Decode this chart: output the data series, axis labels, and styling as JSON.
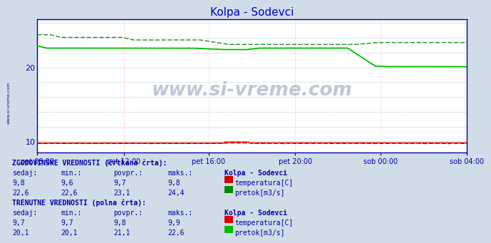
{
  "title": "Kolpa - Sodevci",
  "title_color": "#0000cc",
  "bg_color": "#d0dde8",
  "plot_bg_color": "#ffffff",
  "grid_color_v": "#ffaaaa",
  "grid_color_h": "#88bbbb",
  "y_ticks": [
    10,
    20
  ],
  "y_extra_h": [
    12,
    14,
    16,
    18,
    22,
    24,
    26
  ],
  "y_min": 8.5,
  "y_max": 26.5,
  "x_labels": [
    "pet 08:00",
    "pet 12:00",
    "pet 16:00",
    "pet 20:00",
    "sob 00:00",
    "sob 04:00"
  ],
  "n_points": 264,
  "temp_hist_color": "#cc0000",
  "temp_curr_color": "#dd0000",
  "flow_hist_color": "#008800",
  "flow_curr_color": "#00bb00",
  "watermark": "www.si-vreme.com",
  "watermark_color": "#1a3a6a",
  "left_label": "www.si-vreme.com",
  "text_color": "#0000aa",
  "border_color": "#0000aa",
  "hist_temp_sedaj": "9,8",
  "hist_temp_min": "9,6",
  "hist_temp_povpr": "9,7",
  "hist_temp_maks": "9,8",
  "hist_flow_sedaj": "22,6",
  "hist_flow_min": "22,6",
  "hist_flow_povpr": "23,1",
  "hist_flow_maks": "24,4",
  "curr_temp_sedaj": "9,7",
  "curr_temp_min": "9,7",
  "curr_temp_povpr": "9,8",
  "curr_temp_maks": "9,9",
  "curr_flow_sedaj": "20,1",
  "curr_flow_min": "20,1",
  "curr_flow_povpr": "21,1",
  "curr_flow_maks": "22,6"
}
